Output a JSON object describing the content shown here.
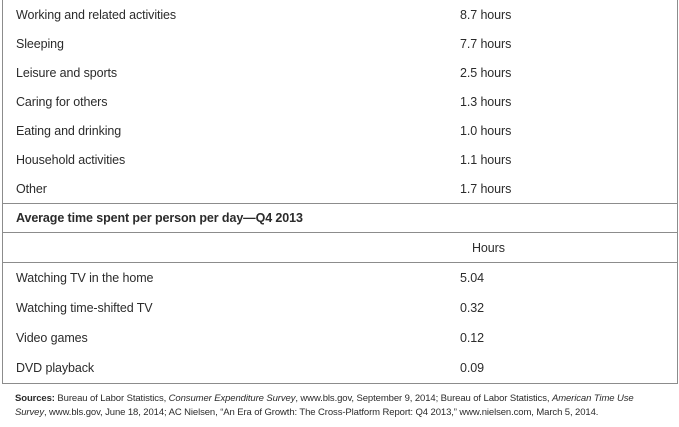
{
  "colors": {
    "border": "#8c8c8c",
    "text": "#2b2b2b",
    "background": "#ffffff"
  },
  "table1": {
    "rows": [
      {
        "label": "Working and related activities",
        "value": "8.7 hours"
      },
      {
        "label": "Sleeping",
        "value": "7.7 hours"
      },
      {
        "label": "Leisure and sports",
        "value": "2.5 hours"
      },
      {
        "label": "Caring for others",
        "value": "1.3 hours"
      },
      {
        "label": "Eating and drinking",
        "value": "1.0 hours"
      },
      {
        "label": "Household activities",
        "value": "1.1 hours"
      },
      {
        "label": "Other",
        "value": "1.7 hours"
      }
    ]
  },
  "section_header": "Average time spent per person per day—Q4 2013",
  "column_header": "Hours",
  "table2": {
    "rows": [
      {
        "label": "Watching TV in the home",
        "value": "5.04"
      },
      {
        "label": "Watching time-shifted TV",
        "value": "0.32"
      },
      {
        "label": "Video games",
        "value": "0.12"
      },
      {
        "label": "DVD playback",
        "value": "0.09"
      }
    ]
  },
  "sources": {
    "segments": [
      {
        "text": "Sources: ",
        "bold": true
      },
      {
        "text": "Bureau of Labor Statistics, "
      },
      {
        "text": "Consumer Expenditure Survey",
        "italic": true
      },
      {
        "text": ", www.bls.gov, September 9, 2014; Bureau of Labor Statistics, "
      },
      {
        "text": "American Time Use Survey",
        "italic": true
      },
      {
        "text": ", www.bls.gov, June 18, 2014; AC Nielsen, “An Era of Growth: The Cross-Platform Report: Q4 2013,” www.nielsen.com, March 5, 2014."
      }
    ]
  }
}
